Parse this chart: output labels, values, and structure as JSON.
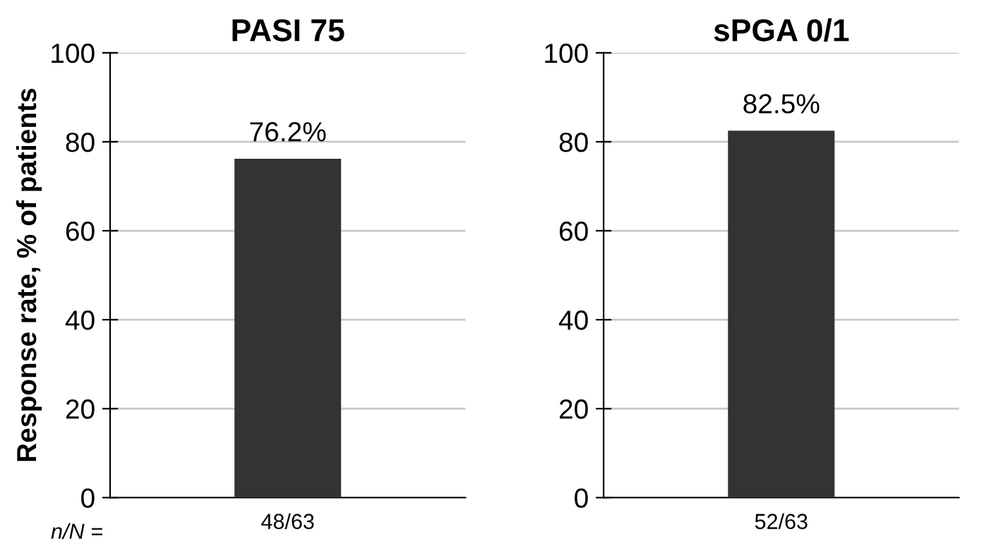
{
  "chart_data": [
    {
      "type": "bar",
      "title": "PASI 75",
      "ylabel": "Response rate, % of patients",
      "categories": [
        "48/63"
      ],
      "values": [
        76.2
      ],
      "value_labels": [
        "76.2%"
      ],
      "color": "#333333",
      "ylim": [
        0,
        100
      ],
      "yticks": [
        0,
        20,
        40,
        60,
        80,
        100
      ],
      "grid": "y",
      "annotations": [
        "n/N ="
      ]
    },
    {
      "type": "bar",
      "title": "sPGA 0/1",
      "categories": [
        "52/63"
      ],
      "values": [
        82.5
      ],
      "value_labels": [
        "82.5%"
      ],
      "color": "#333333",
      "ylim": [
        0,
        100
      ],
      "yticks": [
        0,
        20,
        40,
        60,
        80,
        100
      ],
      "grid": "y"
    }
  ]
}
